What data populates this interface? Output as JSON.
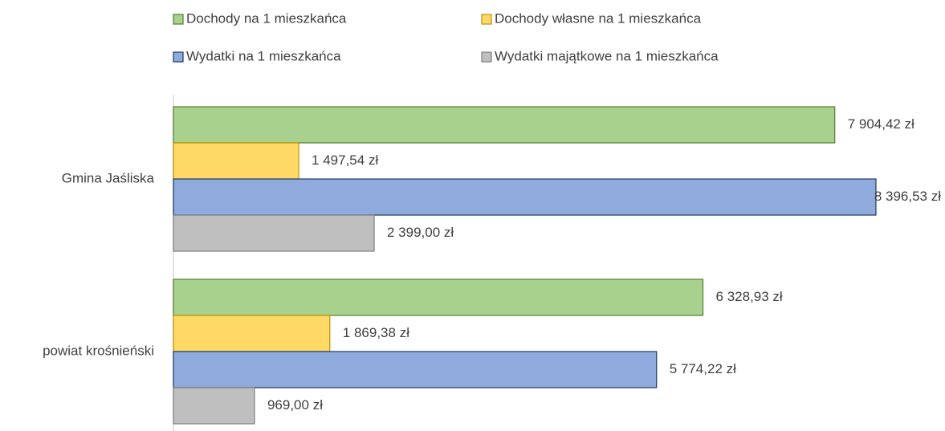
{
  "chart_data": {
    "type": "bar",
    "orientation": "horizontal",
    "categories": [
      "Gmina Jaśliska",
      "powiat krośnieński"
    ],
    "series": [
      {
        "name": "Dochody na 1 mieszkańca",
        "color": "#a9d18e",
        "border": "#507e32",
        "values": [
          7904.42,
          6328.93
        ],
        "value_labels": [
          "7 904,42 zł",
          "6 328,93 zł"
        ]
      },
      {
        "name": "Dochody własne na 1 mieszkańca",
        "color": "#ffd966",
        "border": "#bf9000",
        "values": [
          1497.54,
          1869.38
        ],
        "value_labels": [
          "1 497,54 zł",
          "1 869,38 zł"
        ]
      },
      {
        "name": "Wydatki na 1 mieszkańca",
        "color": "#8faadc",
        "border": "#1f3864",
        "values": [
          8396.53,
          5774.22
        ],
        "value_labels": [
          "8 396,53 zł",
          "5 774,22 zł"
        ]
      },
      {
        "name": "Wydatki majątkowe na 1 mieszkańca",
        "color": "#bfbfbf",
        "border": "#7f7f7f",
        "values": [
          2399.0,
          969.0
        ],
        "value_labels": [
          "2 399,00 zł",
          "969,00 zł"
        ]
      }
    ],
    "legend": "top"
  }
}
